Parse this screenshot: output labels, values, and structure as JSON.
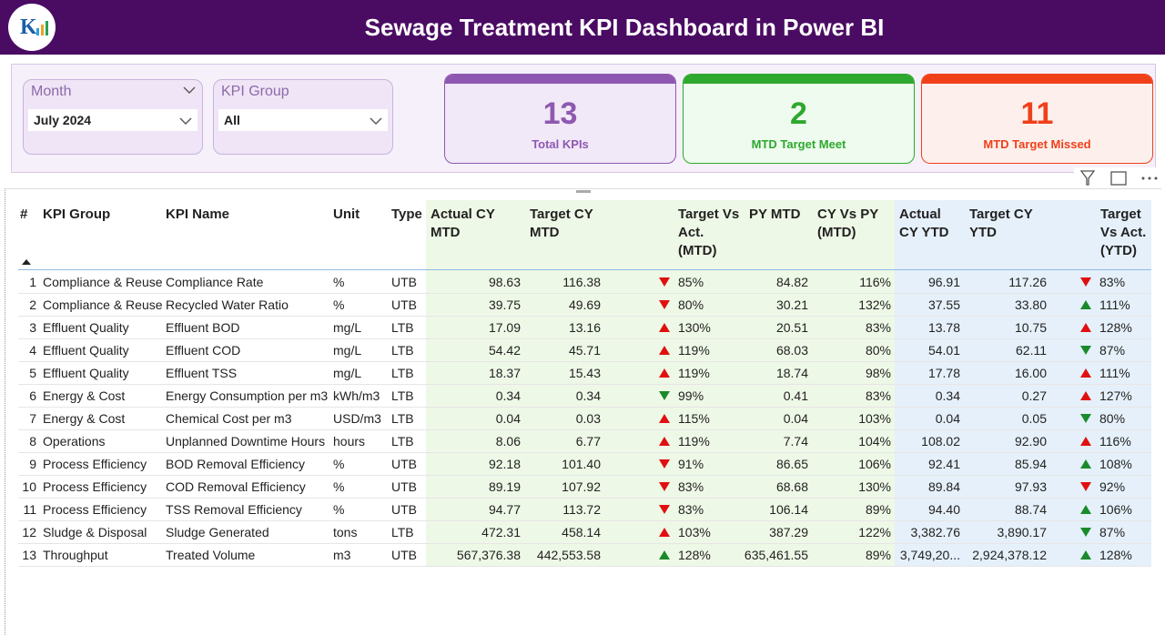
{
  "header": {
    "title": "Sewage Treatment KPI Dashboard in Power BI"
  },
  "filters": [
    {
      "label": "Month",
      "value": "July 2024"
    },
    {
      "label": "KPI Group",
      "value": "All"
    }
  ],
  "cards": [
    {
      "value": "13",
      "label": "Total KPIs",
      "color": "#8e58b0"
    },
    {
      "value": "2",
      "label": "MTD Target Meet",
      "color": "#2ea82e"
    },
    {
      "value": "11",
      "label": "MTD Target Missed",
      "color": "#f0401a"
    }
  ],
  "table": {
    "columns": [
      "#",
      "KPI Group",
      "KPI Name",
      "Unit",
      "Type",
      "Actual CY MTD",
      "Target CY MTD",
      "Target Vs Act. (MTD)",
      "PY MTD",
      "CY Vs PY (MTD)",
      "Actual CY YTD",
      "Target CY YTD",
      "Target Vs Act. (YTD)"
    ],
    "rows": [
      {
        "cells": [
          "1",
          "Compliance & Reuse",
          "Compliance Rate",
          "%",
          "UTB",
          "98.63",
          "116.38",
          "85%",
          "84.82",
          "116%",
          "96.91",
          "117.26",
          "83%"
        ],
        "mtd_icon": {
          "dir": "down",
          "color": "#e01010"
        },
        "ytd_icon": {
          "dir": "down",
          "color": "#e01010"
        }
      },
      {
        "cells": [
          "2",
          "Compliance & Reuse",
          "Recycled Water Ratio",
          "%",
          "UTB",
          "39.75",
          "49.69",
          "80%",
          "30.21",
          "132%",
          "37.55",
          "33.80",
          "111%"
        ],
        "mtd_icon": {
          "dir": "down",
          "color": "#e01010"
        },
        "ytd_icon": {
          "dir": "up",
          "color": "#1a8a2a"
        }
      },
      {
        "cells": [
          "3",
          "Effluent Quality",
          "Effluent BOD",
          "mg/L",
          "LTB",
          "17.09",
          "13.16",
          "130%",
          "20.51",
          "83%",
          "13.78",
          "10.75",
          "128%"
        ],
        "mtd_icon": {
          "dir": "up",
          "color": "#e01010"
        },
        "ytd_icon": {
          "dir": "up",
          "color": "#e01010"
        }
      },
      {
        "cells": [
          "4",
          "Effluent Quality",
          "Effluent COD",
          "mg/L",
          "LTB",
          "54.42",
          "45.71",
          "119%",
          "68.03",
          "80%",
          "54.01",
          "62.11",
          "87%"
        ],
        "mtd_icon": {
          "dir": "up",
          "color": "#e01010"
        },
        "ytd_icon": {
          "dir": "down",
          "color": "#1a8a2a"
        }
      },
      {
        "cells": [
          "5",
          "Effluent Quality",
          "Effluent TSS",
          "mg/L",
          "LTB",
          "18.37",
          "15.43",
          "119%",
          "18.74",
          "98%",
          "17.78",
          "16.00",
          "111%"
        ],
        "mtd_icon": {
          "dir": "up",
          "color": "#e01010"
        },
        "ytd_icon": {
          "dir": "up",
          "color": "#e01010"
        }
      },
      {
        "cells": [
          "6",
          "Energy & Cost",
          "Energy Consumption per m3",
          "kWh/m3",
          "LTB",
          "0.34",
          "0.34",
          "99%",
          "0.41",
          "83%",
          "0.34",
          "0.27",
          "127%"
        ],
        "mtd_icon": {
          "dir": "down",
          "color": "#1a8a2a"
        },
        "ytd_icon": {
          "dir": "up",
          "color": "#e01010"
        }
      },
      {
        "cells": [
          "7",
          "Energy & Cost",
          "Chemical Cost per m3",
          "USD/m3",
          "LTB",
          "0.04",
          "0.03",
          "115%",
          "0.04",
          "103%",
          "0.04",
          "0.05",
          "80%"
        ],
        "mtd_icon": {
          "dir": "up",
          "color": "#e01010"
        },
        "ytd_icon": {
          "dir": "down",
          "color": "#1a8a2a"
        }
      },
      {
        "cells": [
          "8",
          "Operations",
          "Unplanned Downtime Hours",
          "hours",
          "LTB",
          "8.06",
          "6.77",
          "119%",
          "7.74",
          "104%",
          "108.02",
          "92.90",
          "116%"
        ],
        "mtd_icon": {
          "dir": "up",
          "color": "#e01010"
        },
        "ytd_icon": {
          "dir": "up",
          "color": "#e01010"
        }
      },
      {
        "cells": [
          "9",
          "Process Efficiency",
          "BOD Removal Efficiency",
          "%",
          "UTB",
          "92.18",
          "101.40",
          "91%",
          "86.65",
          "106%",
          "92.41",
          "85.94",
          "108%"
        ],
        "mtd_icon": {
          "dir": "down",
          "color": "#e01010"
        },
        "ytd_icon": {
          "dir": "up",
          "color": "#1a8a2a"
        }
      },
      {
        "cells": [
          "10",
          "Process Efficiency",
          "COD Removal Efficiency",
          "%",
          "UTB",
          "89.19",
          "107.92",
          "83%",
          "68.68",
          "130%",
          "89.84",
          "97.93",
          "92%"
        ],
        "mtd_icon": {
          "dir": "down",
          "color": "#e01010"
        },
        "ytd_icon": {
          "dir": "down",
          "color": "#e01010"
        }
      },
      {
        "cells": [
          "11",
          "Process Efficiency",
          "TSS Removal Efficiency",
          "%",
          "UTB",
          "94.77",
          "113.72",
          "83%",
          "106.14",
          "89%",
          "94.40",
          "88.74",
          "106%"
        ],
        "mtd_icon": {
          "dir": "down",
          "color": "#e01010"
        },
        "ytd_icon": {
          "dir": "up",
          "color": "#1a8a2a"
        }
      },
      {
        "cells": [
          "12",
          "Sludge & Disposal",
          "Sludge Generated",
          "tons",
          "LTB",
          "472.31",
          "458.14",
          "103%",
          "387.29",
          "122%",
          "3,382.76",
          "3,890.17",
          "87%"
        ],
        "mtd_icon": {
          "dir": "up",
          "color": "#e01010"
        },
        "ytd_icon": {
          "dir": "down",
          "color": "#1a8a2a"
        }
      },
      {
        "cells": [
          "13",
          "Throughput",
          "Treated Volume",
          "m3",
          "UTB",
          "567,376.38",
          "442,553.58",
          "128%",
          "635,461.55",
          "89%",
          "3,749,20...",
          "2,924,378.12",
          "128%"
        ],
        "mtd_icon": {
          "dir": "up",
          "color": "#1a8a2a"
        },
        "ytd_icon": {
          "dir": "up",
          "color": "#1a8a2a"
        }
      }
    ]
  }
}
